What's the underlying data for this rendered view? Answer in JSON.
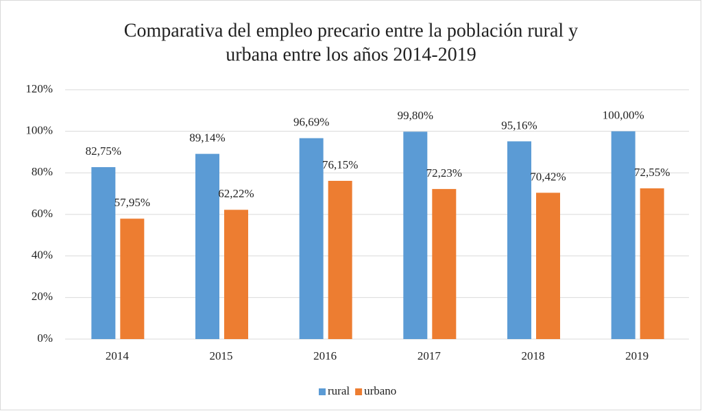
{
  "chart_data": {
    "type": "bar",
    "title": [
      "Comparativa del empleo precario entre la población rural y",
      "urbana entre los años 2014-2019"
    ],
    "categories": [
      "2014",
      "2015",
      "2016",
      "2017",
      "2018",
      "2019"
    ],
    "series": [
      {
        "name": "rural",
        "color": "#5b9bd5",
        "values": [
          82.75,
          89.14,
          96.69,
          99.8,
          95.16,
          100
        ],
        "value_labels": [
          "82,75%",
          "89,14%",
          "96,69%",
          "99,80%",
          "95,16%",
          "100,00%"
        ]
      },
      {
        "name": "urbano",
        "color": "#ed7d31",
        "values": [
          57.95,
          62.22,
          76.15,
          72.23,
          70.42,
          72.55
        ],
        "value_labels": [
          "57,95%",
          "62,22%",
          "76,15%",
          "72,23%",
          "70,42%",
          "72,55%"
        ]
      }
    ],
    "ylim": [
      0,
      120
    ],
    "yticks": [
      {
        "value": 0,
        "label": "0%"
      },
      {
        "value": 20,
        "label": "20%"
      },
      {
        "value": 40,
        "label": "40%"
      },
      {
        "value": 60,
        "label": "60%"
      },
      {
        "value": 80,
        "label": "80%"
      },
      {
        "value": 100,
        "label": "100%"
      },
      {
        "value": 120,
        "label": "120%"
      }
    ],
    "grid": true,
    "legend": "bottom"
  }
}
